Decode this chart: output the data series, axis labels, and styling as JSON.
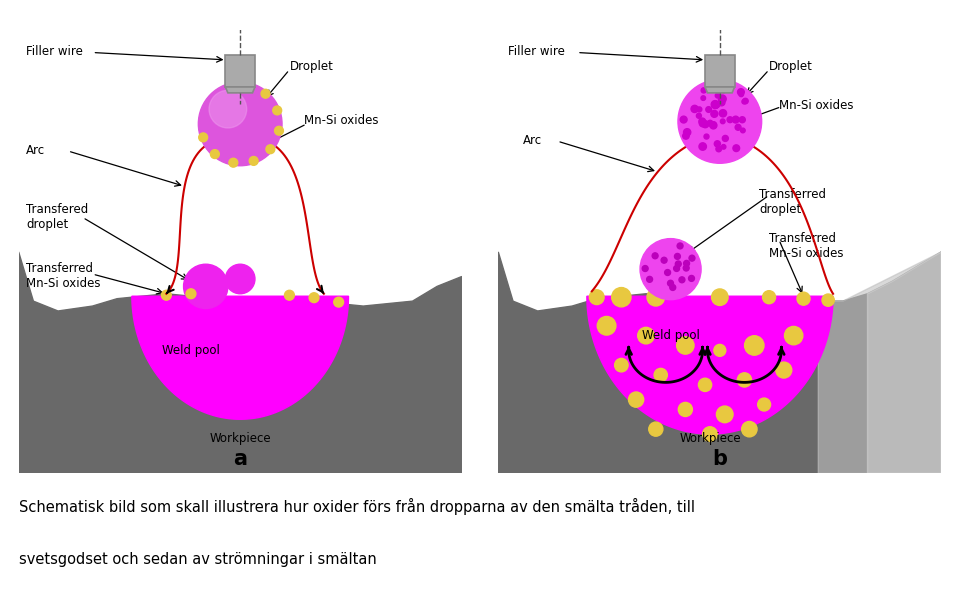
{
  "bg_color": "#ffffff",
  "gray_workpiece": "#696969",
  "gray_workpiece_light": "#a0a0a0",
  "magenta_pool": "#ff00ff",
  "magenta_droplet_a": "#dd66dd",
  "magenta_droplet_b": "#ff44ff",
  "yellow_oxide": "#e8c840",
  "gray_nozzle_dark": "#888888",
  "gray_nozzle_light": "#aaaaaa",
  "red_arc": "#cc0000",
  "caption_line1": "Schematisk bild som skall illustrera hur oxider förs från dropparna av den smälta tråden, till",
  "caption_line2": "svetsgodset och sedan av strömningar i smältan",
  "label_a": "a",
  "label_b": "b",
  "label_filler_wire_a": "Filler wire",
  "label_filler_wire_b": "Filler wire",
  "label_droplet": "Droplet",
  "label_mn_si": "Mn-Si oxides",
  "label_arc_a": "Arc",
  "label_arc_b": "Arc",
  "label_transfered_droplet_a": "Transfered\ndroplet",
  "label_transferred_mn_si_a": "Transferred\nMn-Si oxides",
  "label_weld_pool": "Weld pool",
  "label_workpiece": "Workpiece",
  "label_transferred_droplet_b": "Transferred\ndroplet",
  "label_transferred_mn_si_b": "Transferred\nMn-Si oxides"
}
